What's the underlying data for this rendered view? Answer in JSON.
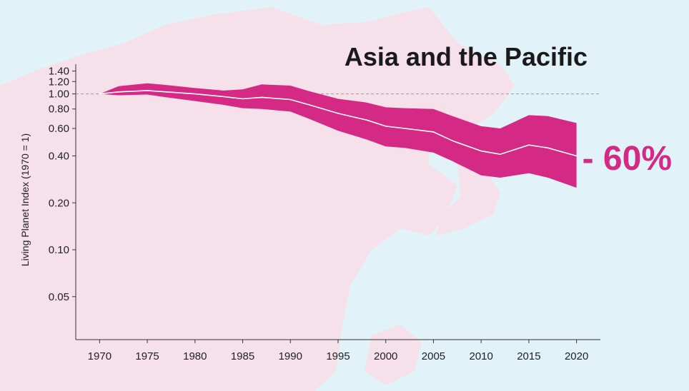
{
  "chart_data": {
    "type": "area",
    "title": "Asia and the Pacific",
    "ylabel": "Living Planet Index (1970 = 1)",
    "xlabel": "",
    "yscale": "log",
    "xlim": [
      1967.5,
      2022.5
    ],
    "ylim": [
      0.0265,
      1.55
    ],
    "x_ticks": [
      "1970",
      "1975",
      "1980",
      "1985",
      "1990",
      "1995",
      "2000",
      "2005",
      "2010",
      "2015",
      "2020"
    ],
    "y_ticks": [
      "1.40",
      "1.20",
      "1.00",
      "0.80",
      "0.60",
      "0.40",
      "0.20",
      "0.10",
      "0.05"
    ],
    "reference_line": 1.0,
    "change_label": "- 60%",
    "colors": {
      "band": "#d42a85",
      "index_line": "#ffffff",
      "map_land": "#f6e0ea",
      "map_water": "#e1f2f9"
    },
    "series": [
      {
        "x": [
          1970,
          1972,
          1975,
          1977,
          1980,
          1983,
          1985,
          1987,
          1990,
          1992,
          1995,
          1998,
          2000,
          2002,
          2005,
          2007,
          2010,
          2012,
          2015,
          2017,
          2020
        ],
        "index": [
          1.0,
          1.03,
          1.05,
          1.03,
          1.0,
          0.96,
          0.93,
          0.95,
          0.92,
          0.85,
          0.75,
          0.68,
          0.62,
          0.6,
          0.57,
          0.5,
          0.43,
          0.41,
          0.47,
          0.45,
          0.4
        ],
        "upper": [
          1.0,
          1.12,
          1.17,
          1.14,
          1.09,
          1.05,
          1.07,
          1.15,
          1.13,
          1.04,
          0.93,
          0.88,
          0.82,
          0.81,
          0.8,
          0.72,
          0.62,
          0.6,
          0.73,
          0.72,
          0.65
        ],
        "lower": [
          1.0,
          0.98,
          0.99,
          0.95,
          0.9,
          0.85,
          0.81,
          0.8,
          0.77,
          0.69,
          0.58,
          0.51,
          0.46,
          0.45,
          0.42,
          0.37,
          0.3,
          0.29,
          0.31,
          0.29,
          0.25
        ]
      }
    ]
  }
}
